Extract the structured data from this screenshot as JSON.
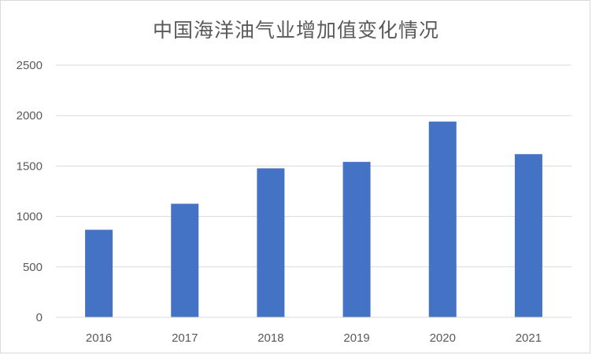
{
  "chart_data": {
    "type": "bar",
    "title": "中国海洋油气业增加值变化情况",
    "categories": [
      "2016",
      "2017",
      "2018",
      "2019",
      "2020",
      "2021"
    ],
    "values": [
      868,
      1126,
      1477,
      1541,
      1941,
      1618
    ],
    "ylim": [
      0,
      2500
    ],
    "yticks": [
      0,
      500,
      1000,
      1500,
      2000,
      2500
    ],
    "ytick_labels": [
      "0",
      "500",
      "1000",
      "1500",
      "2000",
      "2500"
    ],
    "grid": true,
    "legend": "none",
    "bar_color": "#4472c4",
    "xlabel": "",
    "ylabel": ""
  }
}
